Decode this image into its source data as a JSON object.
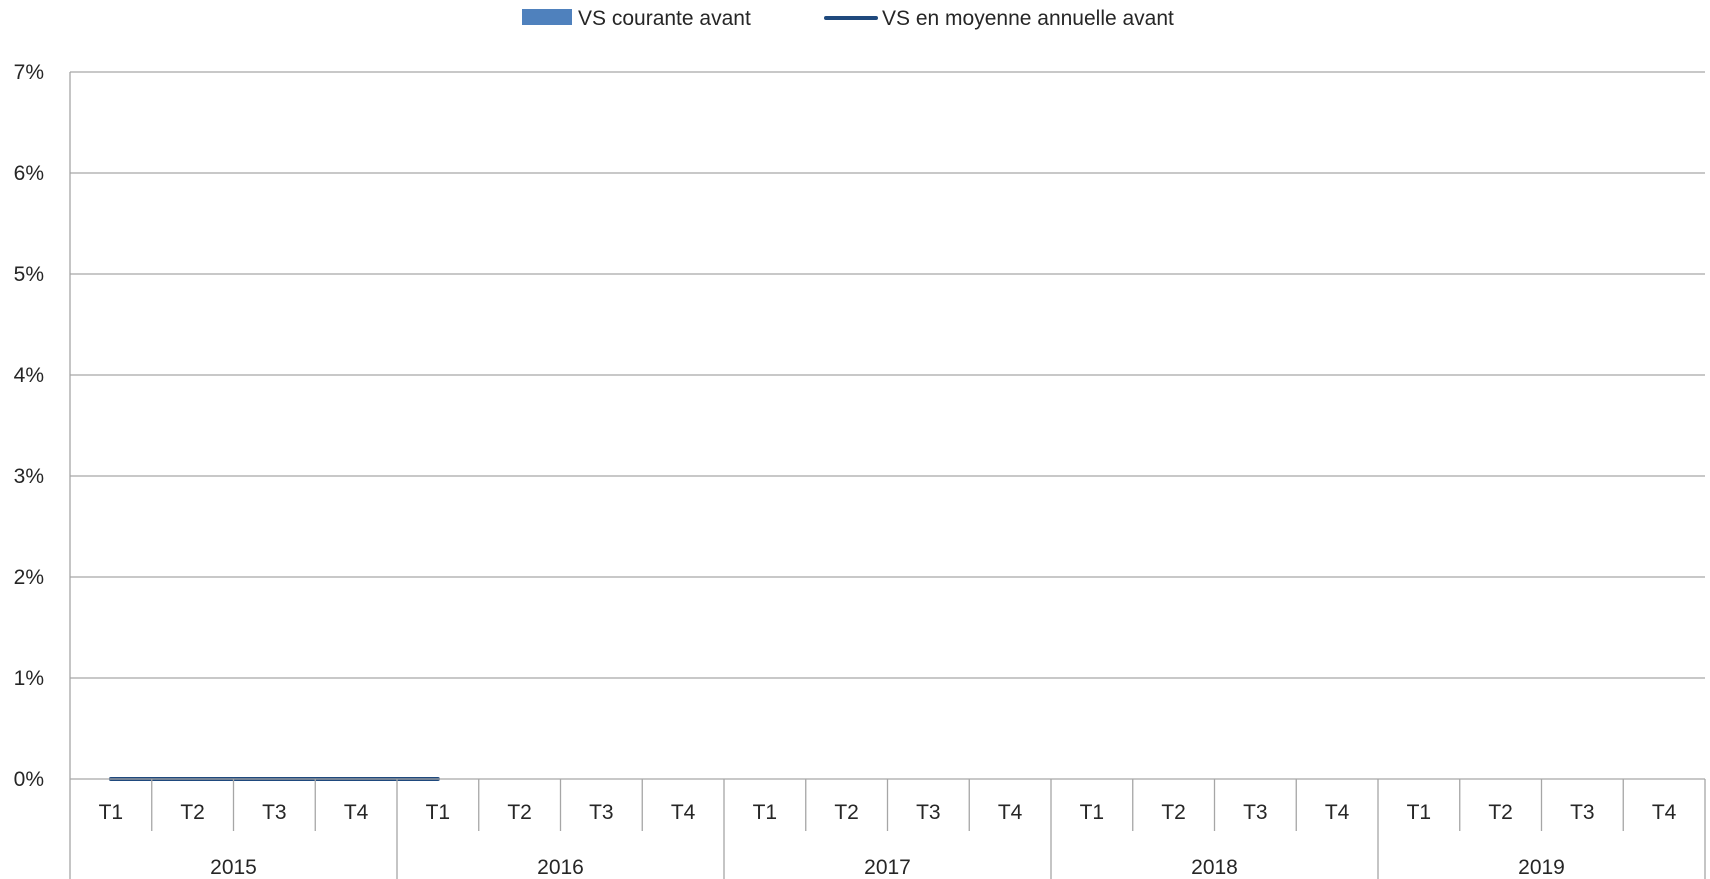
{
  "chart_data": {
    "type": "bar",
    "title": "",
    "xlabel": "",
    "ylabel": "",
    "ylim": [
      0,
      7
    ],
    "y_ticks": [
      "0%",
      "1%",
      "2%",
      "3%",
      "4%",
      "5%",
      "6%",
      "7%"
    ],
    "y_tick_values": [
      0,
      1,
      2,
      3,
      4,
      5,
      6,
      7
    ],
    "grid": true,
    "legend_position": "top",
    "years": [
      "2015",
      "2016",
      "2017",
      "2018",
      "2019"
    ],
    "quarters": [
      "T1",
      "T2",
      "T3",
      "T4"
    ],
    "categories": [
      "2015 T1",
      "2015 T2",
      "2015 T3",
      "2015 T4",
      "2016 T1",
      "2016 T2",
      "2016 T3",
      "2016 T4",
      "2017 T1",
      "2017 T2",
      "2017 T3",
      "2017 T4",
      "2018 T1",
      "2018 T2",
      "2018 T3",
      "2018 T4",
      "2019 T1",
      "2019 T2",
      "2019 T3",
      "2019 T4"
    ],
    "series": [
      {
        "name": "VS courante avant",
        "type": "bar",
        "color": "#4f81bd",
        "values": [
          null,
          null,
          null,
          null,
          null,
          null,
          null,
          null,
          null,
          null,
          null,
          null,
          null,
          null,
          null,
          null,
          null,
          null,
          null,
          null
        ]
      },
      {
        "name": "VS en moyenne annuelle avant",
        "type": "line",
        "color": "#1f497d",
        "values": [
          0,
          0,
          0,
          0,
          0,
          null,
          null,
          null,
          null,
          null,
          null,
          null,
          null,
          null,
          null,
          null,
          null,
          null,
          null,
          null
        ]
      }
    ]
  }
}
